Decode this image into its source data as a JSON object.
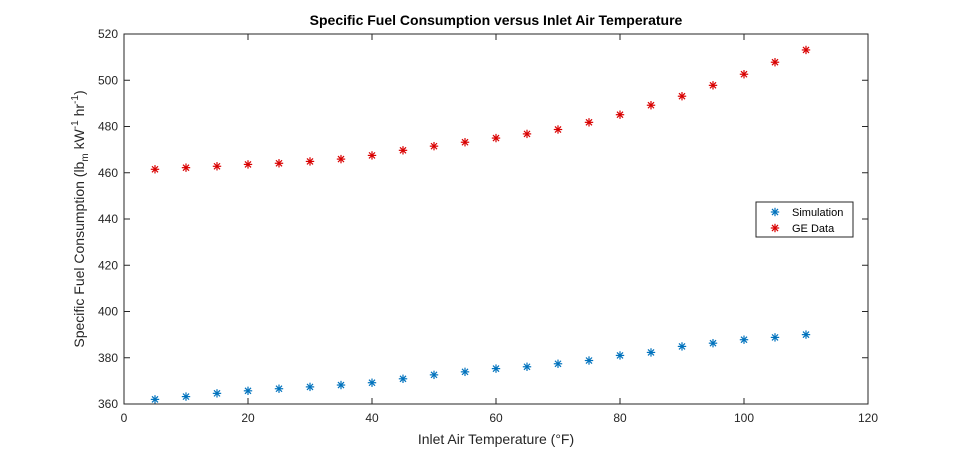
{
  "chart_data": {
    "type": "scatter",
    "title": "Specific Fuel Consumption versus Inlet Air Temperature",
    "xlabel": "Inlet Air Temperature (°F)",
    "ylabel_parts": {
      "prefix": "Specific Fuel Consumption (lb",
      "sub_m": "m",
      "mid1": " kW",
      "sup1": "-1",
      "mid2": " hr",
      "sup2": "-1",
      "suffix": ")"
    },
    "xlim": [
      0,
      120
    ],
    "ylim": [
      360,
      520
    ],
    "xticks": [
      0,
      20,
      40,
      60,
      80,
      100,
      120
    ],
    "yticks": [
      360,
      380,
      400,
      420,
      440,
      460,
      480,
      500,
      520
    ],
    "grid": false,
    "legend_position": "right",
    "marker": "*",
    "series": [
      {
        "name": "Simulation",
        "color": "#0072BD",
        "x": [
          5,
          10,
          15,
          20,
          25,
          30,
          35,
          40,
          45,
          50,
          55,
          60,
          65,
          70,
          75,
          80,
          85,
          90,
          95,
          100,
          105,
          110
        ],
        "y": [
          362,
          363.2,
          364.6,
          365.7,
          366.6,
          367.4,
          368.2,
          369.2,
          370.9,
          372.6,
          373.9,
          375.3,
          376.1,
          377.4,
          378.8,
          381,
          382.3,
          384.9,
          386.3,
          387.8,
          388.8,
          390
        ]
      },
      {
        "name": "GE Data",
        "color": "#D90000",
        "x": [
          5,
          10,
          15,
          20,
          25,
          30,
          35,
          40,
          45,
          50,
          55,
          60,
          65,
          70,
          75,
          80,
          85,
          90,
          95,
          100,
          105,
          110
        ],
        "y": [
          461.5,
          462.2,
          462.8,
          463.6,
          464.1,
          464.9,
          465.9,
          467.5,
          469.7,
          471.5,
          473.2,
          475,
          476.8,
          478.7,
          481.8,
          485.1,
          489.2,
          493.1,
          497.8,
          502.6,
          507.8,
          513.1
        ]
      }
    ]
  }
}
